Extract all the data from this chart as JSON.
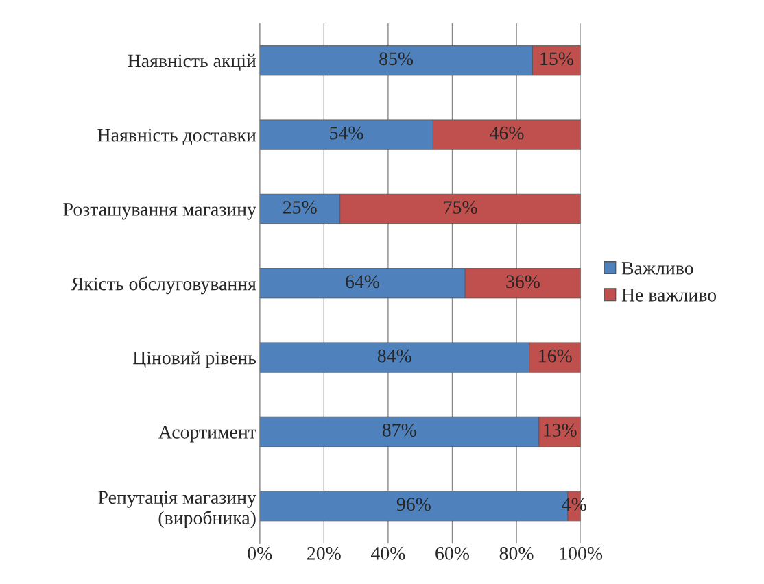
{
  "chart_data": {
    "type": "bar",
    "orientation": "horizontal",
    "stacked": true,
    "categories": [
      "Наявність акцій",
      "Наявність доставки",
      "Розташування магазину",
      "Якість обслуговування",
      "Ціновий рівень",
      "Асортимент",
      "Репутація магазину\n(виробника)"
    ],
    "series": [
      {
        "name": "Важливо",
        "color": "#4f81bd",
        "values": [
          85,
          54,
          25,
          64,
          84,
          87,
          96
        ],
        "value_labels": [
          "85%",
          "54%",
          "25%",
          "64%",
          "84%",
          "87%",
          "96%"
        ]
      },
      {
        "name": "Не важливо",
        "color": "#c0504d",
        "values": [
          15,
          46,
          75,
          36,
          16,
          13,
          4
        ],
        "value_labels": [
          "15%",
          "46%",
          "75%",
          "36%",
          "16%",
          "13%",
          "4%"
        ]
      }
    ],
    "xlim": [
      0,
      100
    ],
    "xticks": [
      {
        "value": 0,
        "label": "0%"
      },
      {
        "value": 20,
        "label": "20%"
      },
      {
        "value": 40,
        "label": "40%"
      },
      {
        "value": 60,
        "label": "60%"
      },
      {
        "value": 80,
        "label": "80%"
      },
      {
        "value": 100,
        "label": "100%"
      }
    ],
    "grid": "x",
    "legend": "right"
  }
}
